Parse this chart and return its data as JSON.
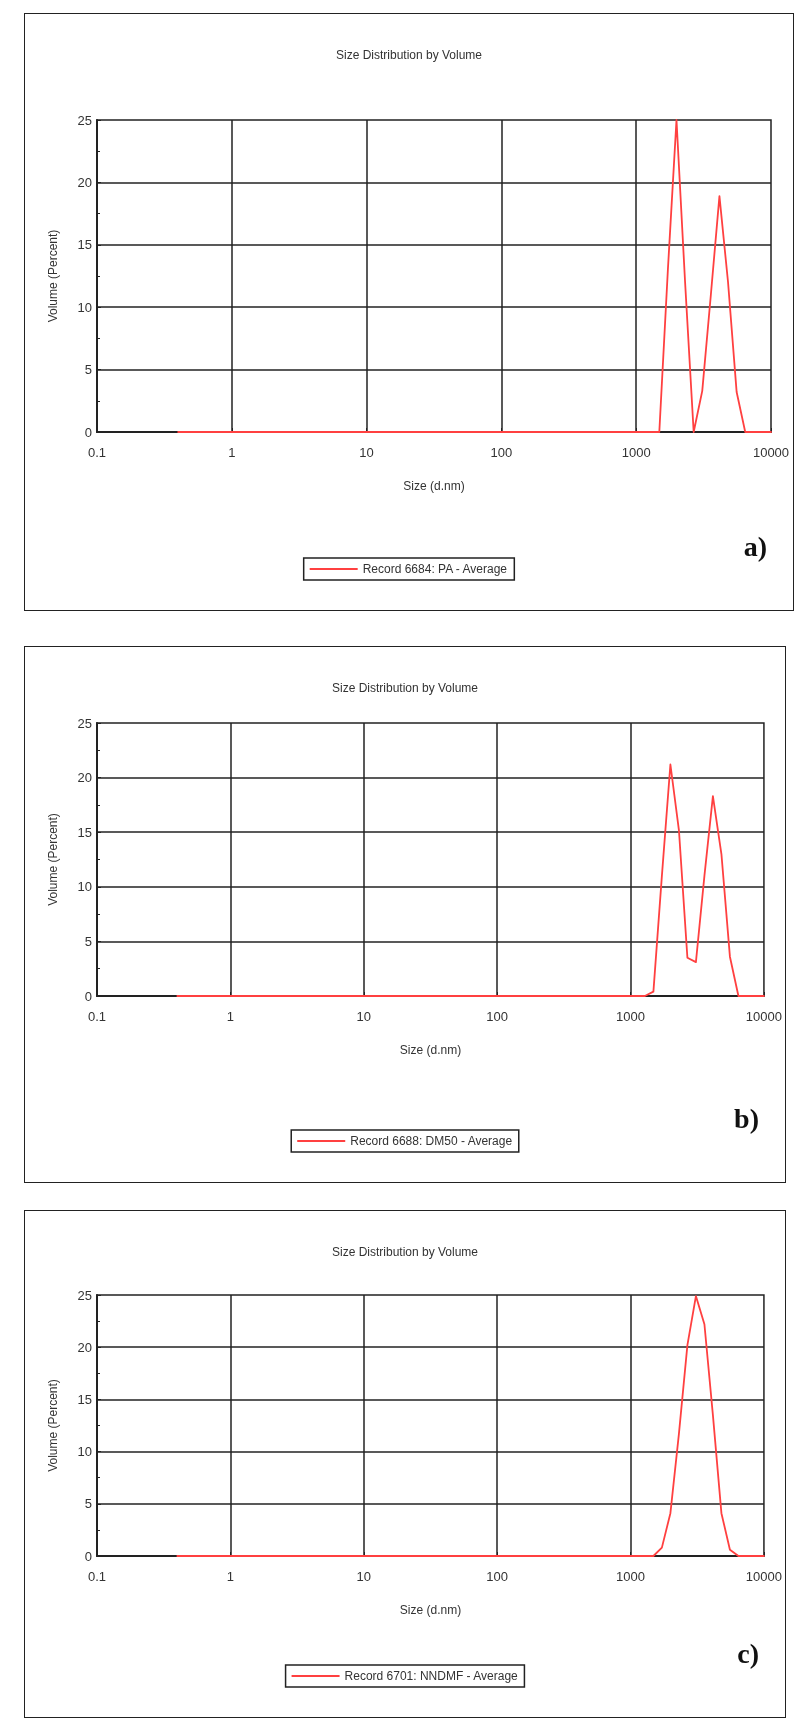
{
  "chart_data": [
    {
      "type": "line",
      "title": "Size Distribution by Volume",
      "xlabel": "Size (d.nm)",
      "ylabel": "Volume (Percent)",
      "log": "x",
      "grid": true,
      "legend": "bottom",
      "marker": "none",
      "line_style": "solid",
      "xlim": [
        0.1,
        10000
      ],
      "xticks": [
        0.1,
        1,
        10,
        100,
        1000,
        10000
      ],
      "ylim": [
        0,
        25
      ],
      "yticks": [
        0,
        5,
        10,
        15,
        20,
        25
      ],
      "annotations": [
        "a)"
      ],
      "series": [
        {
          "name": "Record 6684: PA - Average",
          "color": "#ff4040",
          "x": [
            0.4,
            1484,
            1718,
            1990,
            2305,
            2669,
            3091,
            3580,
            4145,
            4801,
            5560,
            6439,
            10000
          ],
          "values": [
            0,
            0,
            13,
            25,
            12,
            0,
            3.3,
            11,
            18.9,
            12,
            3.2,
            0,
            0
          ]
        }
      ]
    },
    {
      "type": "line",
      "title": "Size Distribution by Volume",
      "xlabel": "Size (d.nm)",
      "ylabel": "Volume (Percent)",
      "log": "x",
      "grid": true,
      "legend": "bottom",
      "marker": "none",
      "line_style": "solid",
      "xlim": [
        0.1,
        10000
      ],
      "xticks": [
        0.1,
        1,
        10,
        100,
        1000,
        10000
      ],
      "ylim": [
        0,
        25
      ],
      "yticks": [
        0,
        5,
        10,
        15,
        20,
        25
      ],
      "annotations": [
        "b)"
      ],
      "series": [
        {
          "name": "Record 6688: DM50 - Average",
          "color": "#ff4040",
          "x": [
            0.4,
            1281,
            1484,
            1718,
            1990,
            2305,
            2669,
            3091,
            3580,
            4145,
            4801,
            5560,
            6439,
            10000
          ],
          "values": [
            0,
            0,
            0.4,
            11,
            21.2,
            15.2,
            3.5,
            3.1,
            11,
            18.3,
            13,
            3.6,
            0,
            0
          ]
        }
      ]
    },
    {
      "type": "line",
      "title": "Size Distribution by Volume",
      "xlabel": "Size (d.nm)",
      "ylabel": "Volume (Percent)",
      "log": "x",
      "grid": true,
      "legend": "bottom",
      "marker": "none",
      "line_style": "solid",
      "xlim": [
        0.1,
        10000
      ],
      "xticks": [
        0.1,
        1,
        10,
        100,
        1000,
        10000
      ],
      "ylim": [
        0,
        25
      ],
      "yticks": [
        0,
        5,
        10,
        15,
        20,
        25
      ],
      "annotations": [
        "c)"
      ],
      "series": [
        {
          "name": "Record 6701: NNDMF - Average",
          "color": "#ff4040",
          "x": [
            0.4,
            1484,
            1718,
            1990,
            2305,
            2669,
            3091,
            3580,
            4145,
            4801,
            5560,
            6439,
            10000
          ],
          "values": [
            0,
            0,
            0.8,
            4.1,
            11.7,
            20.2,
            24.9,
            22.2,
            13.5,
            4.1,
            0.6,
            0,
            0
          ]
        }
      ]
    }
  ]
}
